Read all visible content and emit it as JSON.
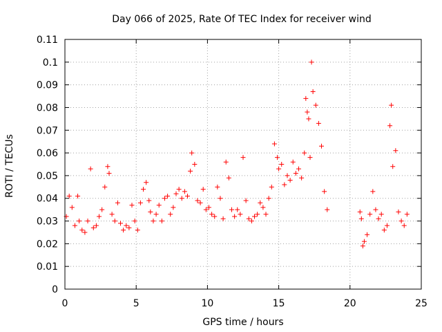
{
  "chart_data": {
    "type": "scatter",
    "title": "Day 066 of 2025, Rate Of TEC Index for receiver wind",
    "xlabel": "GPS time / hours",
    "ylabel": "ROTI / TECUs",
    "xlim": [
      0,
      25
    ],
    "ylim": [
      0,
      0.11
    ],
    "x_ticks": [
      "0",
      "5",
      "10",
      "15",
      "20",
      "25"
    ],
    "y_ticks": [
      "0",
      "0.01",
      "0.02",
      "0.03",
      "0.04",
      "0.05",
      "0.06",
      "0.07",
      "0.08",
      "0.09",
      "0.1",
      "0.11"
    ],
    "grid": true,
    "marker": "+",
    "color": "#ff0000",
    "series": [
      {
        "x": [
          0.1,
          0.3,
          0.5,
          0.7,
          0.9,
          1.0,
          1.2,
          1.4,
          1.6,
          1.8,
          2.0,
          2.2,
          2.4,
          2.6,
          2.8,
          3.0,
          3.1,
          3.3,
          3.5,
          3.7,
          3.9,
          4.1,
          4.3,
          4.5,
          4.7,
          4.9,
          5.1,
          5.3,
          5.5,
          5.7,
          5.9,
          6.0,
          6.2,
          6.4,
          6.6,
          6.8,
          7.0,
          7.2,
          7.4,
          7.6,
          7.8,
          8.0,
          8.2,
          8.4,
          8.6,
          8.8,
          8.9,
          9.1,
          9.3,
          9.5,
          9.7,
          9.9,
          10.1,
          10.3,
          10.5,
          10.7,
          10.9,
          11.1,
          11.3,
          11.5,
          11.7,
          11.9,
          12.1,
          12.3,
          12.5,
          12.7,
          12.9,
          13.1,
          13.3,
          13.5,
          13.7,
          13.9,
          14.1,
          14.3,
          14.5,
          14.7,
          14.9,
          15.0,
          15.2,
          15.4,
          15.6,
          15.8,
          16.0,
          16.2,
          16.4,
          16.6,
          16.8,
          16.9,
          17.0,
          17.1,
          17.2,
          17.3,
          17.4,
          17.6,
          17.8,
          18.0,
          18.2,
          18.4,
          20.7,
          20.8,
          20.9,
          21.0,
          21.2,
          21.4,
          21.6,
          21.8,
          22.0,
          22.2,
          22.4,
          22.6,
          22.8,
          22.9,
          23.0,
          23.2,
          23.4,
          23.6,
          23.8,
          24.0
        ],
        "y": [
          0.032,
          0.041,
          0.036,
          0.028,
          0.041,
          0.03,
          0.026,
          0.025,
          0.03,
          0.053,
          0.027,
          0.028,
          0.032,
          0.035,
          0.045,
          0.054,
          0.051,
          0.033,
          0.03,
          0.038,
          0.029,
          0.026,
          0.028,
          0.027,
          0.037,
          0.03,
          0.026,
          0.038,
          0.044,
          0.047,
          0.039,
          0.034,
          0.03,
          0.033,
          0.037,
          0.03,
          0.04,
          0.041,
          0.033,
          0.036,
          0.042,
          0.044,
          0.04,
          0.043,
          0.041,
          0.052,
          0.06,
          0.055,
          0.039,
          0.038,
          0.044,
          0.035,
          0.036,
          0.033,
          0.032,
          0.045,
          0.04,
          0.031,
          0.056,
          0.049,
          0.035,
          0.032,
          0.035,
          0.033,
          0.058,
          0.039,
          0.031,
          0.03,
          0.032,
          0.033,
          0.038,
          0.036,
          0.033,
          0.04,
          0.045,
          0.064,
          0.058,
          0.053,
          0.055,
          0.046,
          0.05,
          0.048,
          0.056,
          0.051,
          0.053,
          0.049,
          0.06,
          0.084,
          0.078,
          0.075,
          0.058,
          0.1,
          0.087,
          0.081,
          0.073,
          0.063,
          0.043,
          0.035,
          0.034,
          0.031,
          0.019,
          0.021,
          0.024,
          0.033,
          0.043,
          0.035,
          0.031,
          0.033,
          0.026,
          0.028,
          0.072,
          0.081,
          0.054,
          0.061,
          0.034,
          0.03,
          0.028,
          0.033
        ]
      }
    ]
  }
}
